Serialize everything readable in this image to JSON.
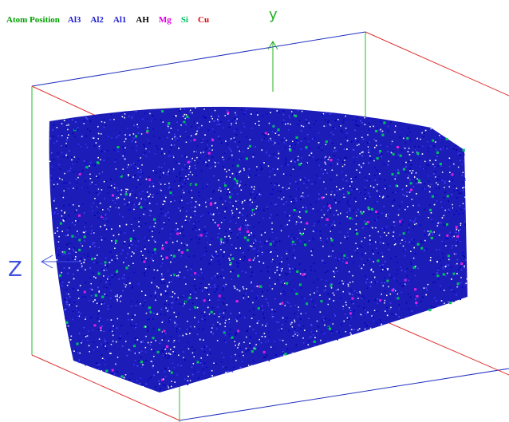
{
  "legend": {
    "title": {
      "label": "Atom Position",
      "color": "#00a000"
    },
    "items": [
      {
        "label": "Al3",
        "color": "#2020d0"
      },
      {
        "label": "Al2",
        "color": "#2020d0"
      },
      {
        "label": "Al1",
        "color": "#2020d0"
      },
      {
        "label": "AH",
        "color": "#000000"
      },
      {
        "label": "Mg",
        "color": "#e000e0"
      },
      {
        "label": "Si",
        "color": "#00c060"
      },
      {
        "label": "Cu",
        "color": "#e00000"
      }
    ]
  },
  "axes": {
    "y": "y",
    "z": "Z"
  }
}
